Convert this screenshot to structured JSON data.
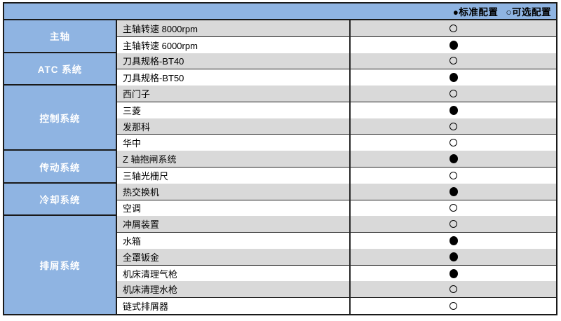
{
  "legend": {
    "standard": "●标准配置",
    "optional": "○可选配置"
  },
  "symbols": {
    "standard": "●",
    "optional": "○"
  },
  "colors": {
    "header_bg": "#8FB4E2",
    "category_bg": "#8FB4E2",
    "alt_row_bg": "#D9D9D9",
    "row_bg": "#FFFFFF",
    "border": "#1A1A1A",
    "category_text": "#FFFFFF",
    "text": "#000000"
  },
  "groups": [
    {
      "category": "主轴",
      "items": [
        {
          "label": "主轴转速 8000rpm",
          "config": "optional"
        },
        {
          "label": "主轴转速 6000rpm",
          "config": "standard"
        }
      ]
    },
    {
      "category": "ATC 系统",
      "items": [
        {
          "label": "刀具规格-BT40",
          "config": "optional"
        },
        {
          "label": "刀具规格-BT50",
          "config": "standard"
        }
      ]
    },
    {
      "category": "控制系统",
      "items": [
        {
          "label": "西门子",
          "config": "optional"
        },
        {
          "label": "三菱",
          "config": "standard"
        },
        {
          "label": "发那科",
          "config": "optional"
        },
        {
          "label": "华中",
          "config": "optional"
        }
      ]
    },
    {
      "category": "传动系统",
      "items": [
        {
          "label": "Z 轴抱闸系统",
          "config": "standard"
        },
        {
          "label": "三轴光栅尺",
          "config": "optional"
        }
      ]
    },
    {
      "category": "冷却系统",
      "items": [
        {
          "label": "热交换机",
          "config": "standard"
        },
        {
          "label": "空调",
          "config": "optional"
        }
      ]
    },
    {
      "category": "排屑系统",
      "items": [
        {
          "label": "冲屑装置",
          "config": "optional"
        },
        {
          "label": "水箱",
          "config": "standard"
        },
        {
          "label": "全罩钣金",
          "config": "standard"
        },
        {
          "label": "机床清理气枪",
          "config": "standard"
        },
        {
          "label": "机床清理水枪",
          "config": "optional"
        },
        {
          "label": "链式排屑器",
          "config": "optional"
        }
      ]
    }
  ]
}
